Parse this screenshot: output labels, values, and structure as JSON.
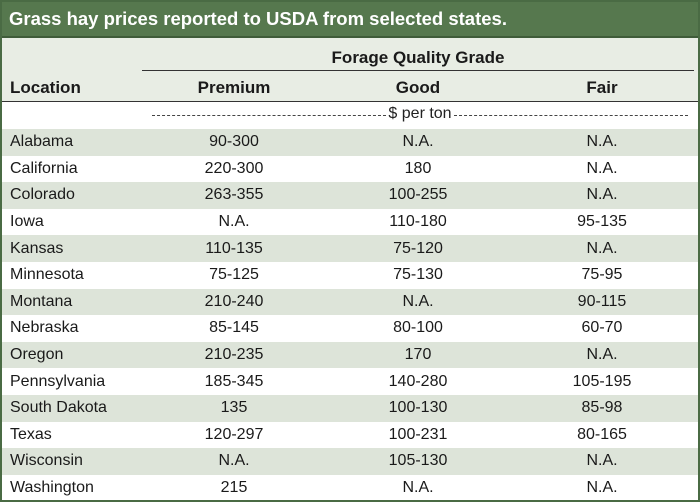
{
  "title": "Grass hay prices reported to USDA from selected states.",
  "group_header": "Forage Quality Grade",
  "columns": {
    "location": "Location",
    "premium": "Premium",
    "good": "Good",
    "fair": "Fair"
  },
  "unit_label": "$ per ton",
  "colors": {
    "title_bg": "#56784e",
    "row_shade": "#dde4d9",
    "row_plain": "#ffffff"
  },
  "rows": [
    {
      "location": "Alabama",
      "premium": "90-300",
      "good": "N.A.",
      "fair": "N.A."
    },
    {
      "location": "California",
      "premium": "220-300",
      "good": "180",
      "fair": "N.A."
    },
    {
      "location": "Colorado",
      "premium": "263-355",
      "good": "100-255",
      "fair": "N.A."
    },
    {
      "location": "Iowa",
      "premium": "N.A.",
      "good": "110-180",
      "fair": "95-135"
    },
    {
      "location": "Kansas",
      "premium": "110-135",
      "good": "75-120",
      "fair": "N.A."
    },
    {
      "location": "Minnesota",
      "premium": "75-125",
      "good": "75-130",
      "fair": "75-95"
    },
    {
      "location": "Montana",
      "premium": "210-240",
      "good": "N.A.",
      "fair": "90-115"
    },
    {
      "location": "Nebraska",
      "premium": "85-145",
      "good": "80-100",
      "fair": "60-70"
    },
    {
      "location": "Oregon",
      "premium": "210-235",
      "good": "170",
      "fair": "N.A."
    },
    {
      "location": "Pennsylvania",
      "premium": "185-345",
      "good": "140-280",
      "fair": "105-195"
    },
    {
      "location": "South Dakota",
      "premium": "135",
      "good": "100-130",
      "fair": "85-98"
    },
    {
      "location": "Texas",
      "premium": "120-297",
      "good": "100-231",
      "fair": "80-165"
    },
    {
      "location": "Wisconsin",
      "premium": "N.A.",
      "good": "105-130",
      "fair": "N.A."
    },
    {
      "location": "Washington",
      "premium": "215",
      "good": "N.A.",
      "fair": "N.A."
    }
  ]
}
